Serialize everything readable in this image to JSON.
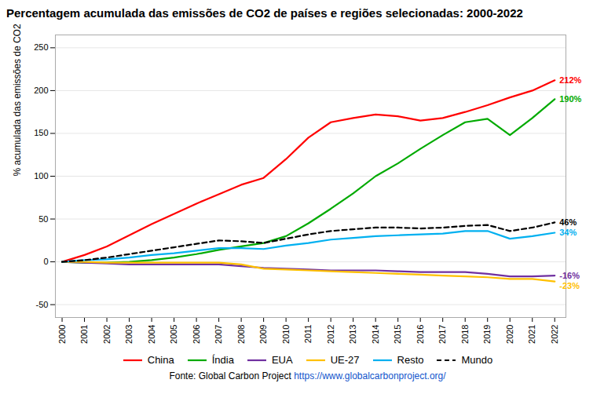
{
  "chart_data": {
    "type": "line",
    "title": "Percentagem acumulada das emissões de CO2 de países e regiões selecionadas: 2000-2022",
    "y_label": "% acumulada das emissões de CO2",
    "x": [
      2000,
      2001,
      2002,
      2003,
      2004,
      2005,
      2006,
      2007,
      2008,
      2009,
      2010,
      2011,
      2012,
      2013,
      2014,
      2015,
      2016,
      2017,
      2018,
      2019,
      2020,
      2021,
      2022
    ],
    "series": [
      {
        "name": "China",
        "color": "#ff0000",
        "line_style": "solid",
        "values": [
          0,
          8,
          18,
          31,
          44,
          56,
          68,
          79,
          90,
          98,
          120,
          145,
          163,
          168,
          172,
          170,
          165,
          168,
          175,
          183,
          192,
          200,
          212
        ]
      },
      {
        "name": "Índia",
        "color": "#00aa00",
        "line_style": "solid",
        "values": [
          0,
          -1,
          -1,
          0,
          2,
          5,
          9,
          14,
          18,
          22,
          30,
          45,
          62,
          80,
          100,
          115,
          132,
          148,
          163,
          167,
          148,
          168,
          190
        ]
      },
      {
        "name": "EUA",
        "color": "#7030a0",
        "line_style": "solid",
        "values": [
          0,
          -1,
          -2,
          -3,
          -3,
          -3,
          -3,
          -3,
          -5,
          -7,
          -8,
          -9,
          -10,
          -10,
          -10,
          -11,
          -12,
          -12,
          -12,
          -14,
          -17,
          -17,
          -16
        ]
      },
      {
        "name": "UE-27",
        "color": "#ffc000",
        "line_style": "solid",
        "values": [
          0,
          0,
          -1,
          -1,
          -1,
          -1,
          -1,
          -1,
          -3,
          -8,
          -9,
          -10,
          -11,
          -12,
          -13,
          -14,
          -15,
          -16,
          -17,
          -18,
          -20,
          -20,
          -23
        ]
      },
      {
        "name": "Resto",
        "color": "#00b0f0",
        "line_style": "solid",
        "values": [
          0,
          2,
          3,
          5,
          8,
          10,
          13,
          16,
          16,
          15,
          19,
          22,
          26,
          28,
          30,
          31,
          32,
          33,
          36,
          36,
          27,
          30,
          34
        ]
      },
      {
        "name": "Mundo",
        "color": "#000000",
        "line_style": "dashed",
        "values": [
          0,
          2,
          5,
          9,
          13,
          17,
          21,
          25,
          24,
          22,
          27,
          32,
          36,
          38,
          40,
          40,
          39,
          40,
          42,
          43,
          36,
          40,
          46
        ]
      }
    ],
    "annotations": [
      {
        "text": "212%",
        "x": 2022,
        "y": 212,
        "color": "#ff0000"
      },
      {
        "text": "190%",
        "x": 2022,
        "y": 190,
        "color": "#00aa00"
      },
      {
        "text": "-16%",
        "x": 2022,
        "y": -16,
        "color": "#7030a0"
      },
      {
        "text": "-23%",
        "x": 2022,
        "y": -23,
        "color": "#ffc000"
      },
      {
        "text": "34%",
        "x": 2022,
        "y": 34,
        "color": "#00b0f0"
      },
      {
        "text": "46%",
        "x": 2022,
        "y": 46,
        "color": "#000000"
      }
    ],
    "xlim": [
      1999.7,
      2022.5
    ],
    "xticks": [
      2000,
      2001,
      2002,
      2003,
      2004,
      2005,
      2006,
      2007,
      2008,
      2009,
      2010,
      2011,
      2012,
      2013,
      2014,
      2015,
      2016,
      2017,
      2018,
      2019,
      2020,
      2021,
      2022
    ],
    "ylim": [
      -65,
      265
    ],
    "yticks": [
      -50,
      0,
      50,
      100,
      150,
      200,
      250
    ],
    "grid": "y",
    "legend": "bottom",
    "source": {
      "text": "Fonte: Global Carbon Project ",
      "url": "https://www.globalcarbonproject.org/"
    }
  }
}
